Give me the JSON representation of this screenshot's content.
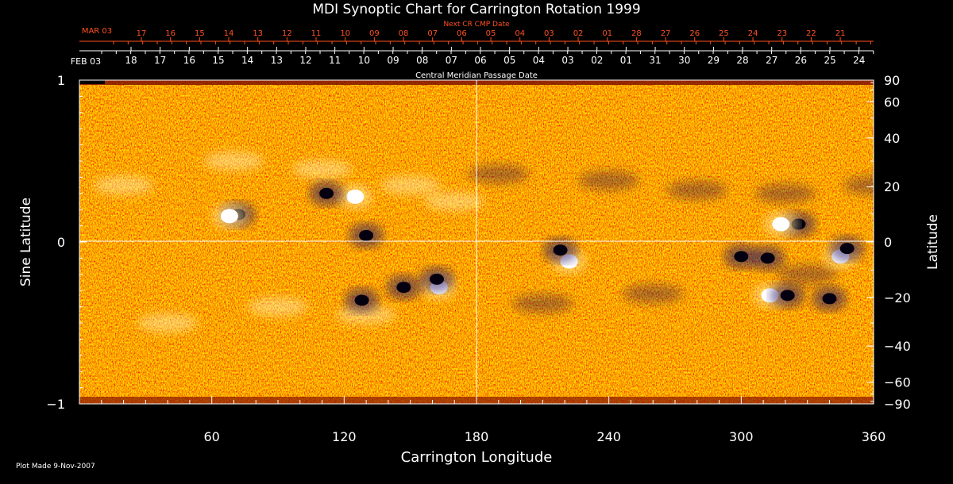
{
  "chart_data": {
    "type": "heatmap",
    "title": "MDI Synoptic Chart for Carrington Rotation 1999",
    "xlabel": "Carrington Longitude",
    "ylabel_left": "Sine Latitude",
    "ylabel_right": "Latitude",
    "xlim": [
      0,
      360
    ],
    "ylim": [
      -1,
      1
    ],
    "x_ticks": [
      "60",
      "120",
      "180",
      "240",
      "300",
      "360"
    ],
    "y_ticks_left": [
      "1",
      "0",
      "−1"
    ],
    "y_ticks_right": [
      "90",
      "60",
      "40",
      "20",
      "0",
      "−20",
      "−40",
      "−60",
      "−90"
    ],
    "top_axis_label": "Central Meridian Passage Date",
    "top_axis_start_label": "FEB 03",
    "top_axis_dates": [
      "18",
      "17",
      "16",
      "15",
      "14",
      "13",
      "12",
      "11",
      "10",
      "09",
      "08",
      "07",
      "06",
      "05",
      "04",
      "03",
      "02",
      "01",
      "31",
      "30",
      "29",
      "28",
      "27",
      "26",
      "25",
      "24"
    ],
    "next_cr_label": "Next CR CMP Date",
    "next_cr_start_label": "MAR 03",
    "next_cr_dates": [
      "17",
      "16",
      "15",
      "14",
      "13",
      "12",
      "11",
      "10",
      "09",
      "08",
      "07",
      "06",
      "05",
      "04",
      "03",
      "02",
      "01",
      "28",
      "27",
      "26",
      "25",
      "24",
      "23",
      "22",
      "21"
    ],
    "features": [
      {
        "name": "positive",
        "lon": 125,
        "sinlat": 0.28
      },
      {
        "name": "negative",
        "lon": 112,
        "sinlat": 0.3
      },
      {
        "name": "negative",
        "lon": 72,
        "sinlat": 0.17
      },
      {
        "name": "positive",
        "lon": 68,
        "sinlat": 0.16
      },
      {
        "name": "negative",
        "lon": 130,
        "sinlat": 0.04
      },
      {
        "name": "positive",
        "lon": 163,
        "sinlat": -0.28
      },
      {
        "name": "negative",
        "lon": 147,
        "sinlat": -0.28
      },
      {
        "name": "negative",
        "lon": 128,
        "sinlat": -0.36
      },
      {
        "name": "negative",
        "lon": 162,
        "sinlat": -0.23
      },
      {
        "name": "positive",
        "lon": 222,
        "sinlat": -0.12
      },
      {
        "name": "negative",
        "lon": 218,
        "sinlat": -0.05
      },
      {
        "name": "negative",
        "lon": 326,
        "sinlat": 0.11
      },
      {
        "name": "positive",
        "lon": 318,
        "sinlat": 0.11
      },
      {
        "name": "negative",
        "lon": 300,
        "sinlat": -0.09
      },
      {
        "name": "negative",
        "lon": 312,
        "sinlat": -0.1
      },
      {
        "name": "positive",
        "lon": 345,
        "sinlat": -0.09
      },
      {
        "name": "negative",
        "lon": 348,
        "sinlat": -0.04
      },
      {
        "name": "positive",
        "lon": 313,
        "sinlat": -0.33
      },
      {
        "name": "negative",
        "lon": 340,
        "sinlat": -0.35
      },
      {
        "name": "negative",
        "lon": 321,
        "sinlat": -0.33
      }
    ]
  },
  "footer": {
    "plot_made": "Plot Made  9-Nov-2007"
  }
}
